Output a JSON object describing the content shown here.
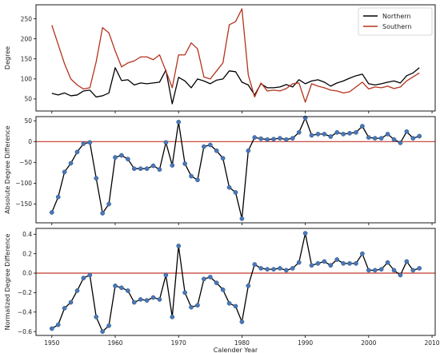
{
  "chart_data": [
    {
      "type": "line",
      "xlabel": "",
      "ylabel": "Degree",
      "xlim": [
        1947.5,
        2010.5
      ],
      "ylim": [
        20,
        285
      ],
      "xticks": [
        1950,
        1960,
        1970,
        1980,
        1990,
        2000,
        2010
      ],
      "xtick_labels": [
        "",
        "",
        "",
        "",
        "",
        "",
        ""
      ],
      "yticks": [
        50,
        100,
        150,
        200,
        250
      ],
      "legend": "top-right",
      "x": [
        1950,
        1951,
        1952,
        1953,
        1954,
        1955,
        1956,
        1957,
        1958,
        1959,
        1960,
        1961,
        1962,
        1963,
        1964,
        1965,
        1966,
        1967,
        1968,
        1969,
        1970,
        1971,
        1972,
        1973,
        1974,
        1975,
        1976,
        1977,
        1978,
        1979,
        1980,
        1981,
        1982,
        1983,
        1984,
        1985,
        1986,
        1987,
        1988,
        1989,
        1990,
        1991,
        1992,
        1993,
        1994,
        1995,
        1996,
        1997,
        1998,
        1999,
        2000,
        2001,
        2002,
        2003,
        2004,
        2005,
        2006,
        2007,
        2008
      ],
      "series": [
        {
          "name": "Northern",
          "color": "#000000",
          "values": [
            64,
            60,
            65,
            58,
            60,
            70,
            72,
            55,
            58,
            65,
            128,
            96,
            98,
            85,
            90,
            88,
            90,
            92,
            122,
            38,
            104,
            95,
            78,
            100,
            95,
            88,
            97,
            100,
            120,
            118,
            92,
            85,
            60,
            88,
            78,
            78,
            80,
            86,
            80,
            98,
            88,
            95,
            98,
            92,
            82,
            90,
            95,
            102,
            108,
            112,
            88,
            85,
            88,
            92,
            95,
            90,
            108,
            115,
            128
          ]
        },
        {
          "name": "Southern",
          "color": "#b5321d",
          "values": [
            234,
            186,
            138,
            100,
            85,
            75,
            78,
            143,
            228,
            215,
            170,
            130,
            140,
            145,
            155,
            155,
            148,
            160,
            120,
            78,
            160,
            160,
            190,
            175,
            105,
            100,
            120,
            140,
            235,
            243,
            275,
            110,
            55,
            90,
            70,
            72,
            70,
            76,
            88,
            90,
            42,
            88,
            82,
            78,
            72,
            70,
            65,
            68,
            80,
            92,
            75,
            80,
            78,
            82,
            76,
            80,
            95,
            105,
            115
          ]
        }
      ]
    },
    {
      "type": "line",
      "xlabel": "",
      "ylabel": "Absolute Degree Difference",
      "xlim": [
        1947.5,
        2010.5
      ],
      "ylim": [
        -195,
        60
      ],
      "xticks": [
        1950,
        1960,
        1970,
        1980,
        1990,
        2000,
        2010
      ],
      "xtick_labels": [
        "",
        "",
        "",
        "",
        "",
        "",
        ""
      ],
      "yticks": [
        -150,
        -100,
        -50,
        0,
        50
      ],
      "hline": 0,
      "x": [
        1950,
        1951,
        1952,
        1953,
        1954,
        1955,
        1956,
        1957,
        1958,
        1959,
        1960,
        1961,
        1962,
        1963,
        1964,
        1965,
        1966,
        1967,
        1968,
        1969,
        1970,
        1971,
        1972,
        1973,
        1974,
        1975,
        1976,
        1977,
        1978,
        1979,
        1980,
        1981,
        1982,
        1983,
        1984,
        1985,
        1986,
        1987,
        1988,
        1989,
        1990,
        1991,
        1992,
        1993,
        1994,
        1995,
        1996,
        1997,
        1998,
        1999,
        2000,
        2001,
        2002,
        2003,
        2004,
        2005,
        2006,
        2007,
        2008
      ],
      "series": [
        {
          "name": "",
          "color": "#000000",
          "marker_color": "#4a78b8",
          "values": [
            -170,
            -133,
            -73,
            -52,
            -25,
            -5,
            -2,
            -88,
            -172,
            -150,
            -38,
            -33,
            -42,
            -65,
            -65,
            -65,
            -58,
            -67,
            -2,
            -57,
            47,
            -53,
            -83,
            -92,
            -12,
            -8,
            -22,
            -40,
            -110,
            -122,
            -185,
            -22,
            10,
            7,
            5,
            6,
            8,
            5,
            8,
            22,
            57,
            15,
            18,
            18,
            12,
            22,
            18,
            20,
            22,
            37,
            10,
            8,
            8,
            18,
            5,
            -3,
            24,
            8,
            13
          ]
        }
      ]
    },
    {
      "type": "line",
      "xlabel": "Calender Year",
      "ylabel": "Normalized Degree Difference",
      "xlim": [
        1947.5,
        2010.5
      ],
      "ylim": [
        -0.64,
        0.46
      ],
      "xticks": [
        1950,
        1960,
        1970,
        1980,
        1990,
        2000,
        2010
      ],
      "xtick_labels": [
        "1950",
        "1960",
        "1970",
        "1980",
        "1990",
        "2000",
        "2010"
      ],
      "yticks": [
        -0.6,
        -0.4,
        -0.2,
        0.0,
        0.2,
        0.4
      ],
      "ytick_labels": [
        "−0.6",
        "−0.4",
        "−0.2",
        "0.0",
        "0.2",
        "0.4"
      ],
      "hline": 0,
      "x": [
        1950,
        1951,
        1952,
        1953,
        1954,
        1955,
        1956,
        1957,
        1958,
        1959,
        1960,
        1961,
        1962,
        1963,
        1964,
        1965,
        1966,
        1967,
        1968,
        1969,
        1970,
        1971,
        1972,
        1973,
        1974,
        1975,
        1976,
        1977,
        1978,
        1979,
        1980,
        1981,
        1982,
        1983,
        1984,
        1985,
        1986,
        1987,
        1988,
        1989,
        1990,
        1991,
        1992,
        1993,
        1994,
        1995,
        1996,
        1997,
        1998,
        1999,
        2000,
        2001,
        2002,
        2003,
        2004,
        2005,
        2006,
        2007,
        2008
      ],
      "series": [
        {
          "name": "",
          "color": "#000000",
          "marker_color": "#4a78b8",
          "values": [
            -0.57,
            -0.53,
            -0.36,
            -0.3,
            -0.18,
            -0.05,
            -0.02,
            -0.45,
            -0.6,
            -0.54,
            -0.13,
            -0.15,
            -0.18,
            -0.3,
            -0.27,
            -0.28,
            -0.25,
            -0.27,
            -0.02,
            -0.45,
            0.28,
            -0.2,
            -0.35,
            -0.33,
            -0.06,
            -0.04,
            -0.1,
            -0.17,
            -0.31,
            -0.34,
            -0.5,
            -0.13,
            0.09,
            0.05,
            0.04,
            0.04,
            0.05,
            0.03,
            0.05,
            0.11,
            0.41,
            0.08,
            0.1,
            0.12,
            0.08,
            0.14,
            0.1,
            0.1,
            0.1,
            0.2,
            0.03,
            0.03,
            0.04,
            0.11,
            0.03,
            -0.02,
            0.12,
            0.03,
            0.05
          ]
        }
      ]
    }
  ]
}
